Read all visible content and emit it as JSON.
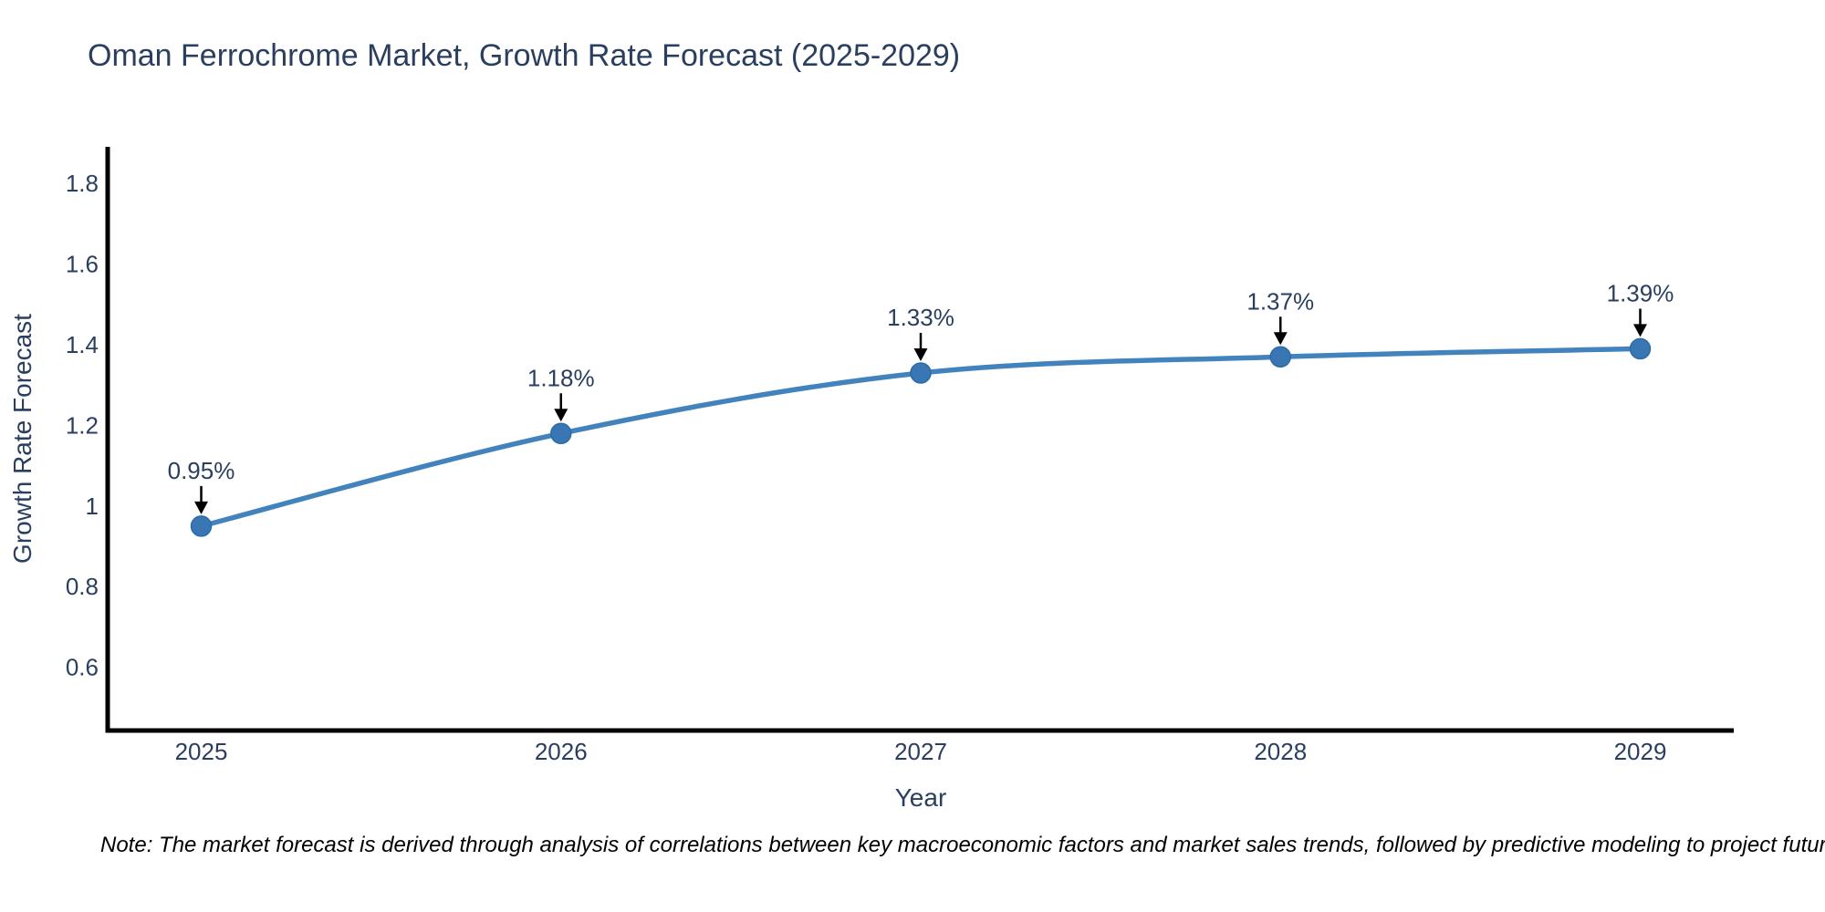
{
  "chart_data": {
    "type": "line",
    "title": "Oman Ferrochrome Market, Growth Rate Forecast (2025-2029)",
    "xlabel": "Year",
    "ylabel": "Growth Rate Forecast",
    "x": [
      2025,
      2026,
      2027,
      2028,
      2029
    ],
    "y": [
      0.95,
      1.18,
      1.33,
      1.37,
      1.39
    ],
    "point_labels": [
      "0.95%",
      "1.18%",
      "1.33%",
      "1.37%",
      "1.39%"
    ],
    "x_tick_labels": [
      "2025",
      "2026",
      "2027",
      "2028",
      "2029"
    ],
    "y_tick_values": [
      0.6,
      0.8,
      1.0,
      1.2,
      1.4,
      1.6,
      1.8
    ],
    "y_tick_labels": [
      "0.6",
      "0.8",
      "1",
      "1.2",
      "1.4",
      "1.6",
      "1.8"
    ],
    "xlim": [
      2024.74,
      2029.26
    ],
    "ylim": [
      0.443,
      1.891
    ],
    "grid": false,
    "legend_position": "none",
    "line_shape": "spline",
    "colors": {
      "line": "#4383bd",
      "marker": "#3877b4",
      "marker_edge": "#2f6ba3",
      "axis_line": "#000000",
      "text": "#2a3f5f",
      "annotation_arrow": "#000000",
      "note_text": "#000000"
    }
  },
  "note": {
    "text": "Note: The market forecast is derived through analysis of correlations between key macroeconomic factors and market sales trends, followed by predictive modeling to project future sales"
  }
}
